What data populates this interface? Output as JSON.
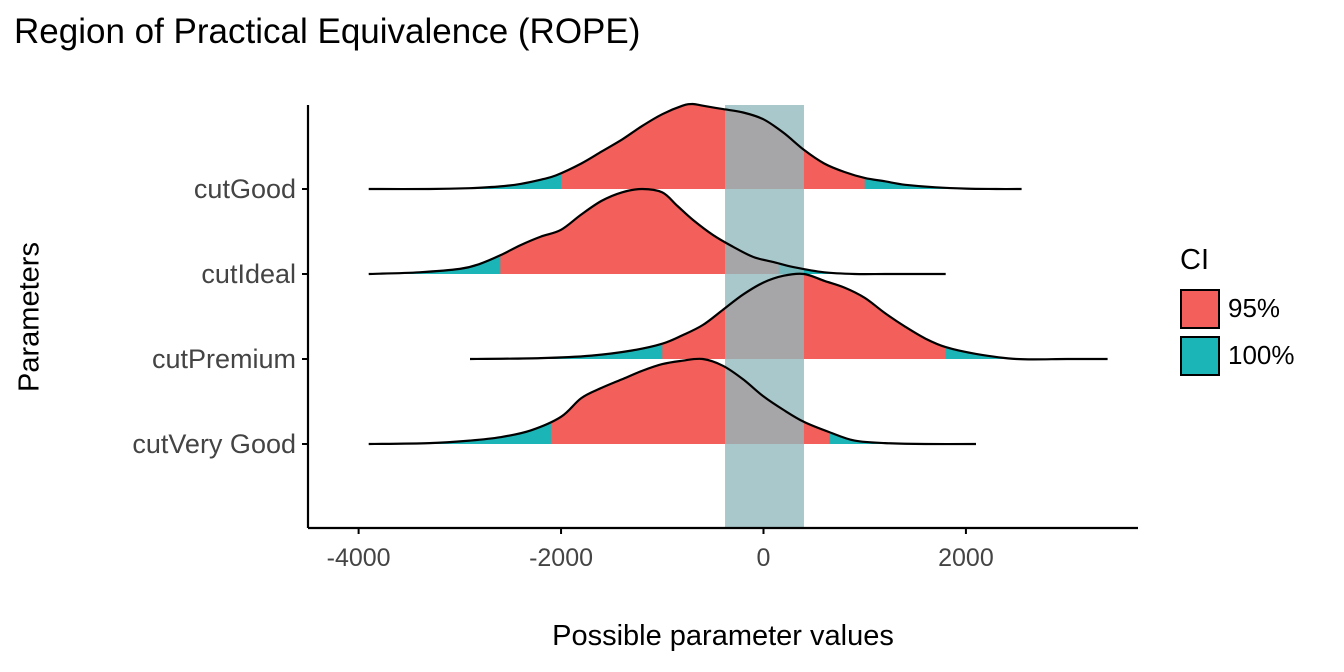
{
  "chart_data": {
    "type": "area",
    "subtype": "ridgeline-density",
    "title": "Region of Practical Equivalence (ROPE)",
    "xlabel": "Possible parameter values",
    "ylabel": "Parameters",
    "xlim": [
      -4500,
      3700
    ],
    "x_ticks": [
      -4000,
      -2000,
      0,
      2000
    ],
    "x_tick_labels": [
      "-4000",
      "-2000",
      "0",
      "2000"
    ],
    "grid": false,
    "rope": {
      "low": -380,
      "high": 400,
      "color": "#8fb8bc"
    },
    "legend": {
      "title": "CI",
      "position": "right",
      "entries": [
        {
          "label": "95%",
          "color": "#f35f5a"
        },
        {
          "label": "100%",
          "color": "#1bb5b8"
        }
      ]
    },
    "series": [
      {
        "name": "cutGood",
        "ci95": [
          -2000,
          1000
        ],
        "range": [
          -3900,
          2550
        ],
        "density_x": [
          -3900,
          -3300,
          -2900,
          -2600,
          -2400,
          -2200,
          -2050,
          -1800,
          -1600,
          -1400,
          -1200,
          -1000,
          -800,
          -700,
          -600,
          -400,
          -200,
          0,
          200,
          400,
          600,
          800,
          1000,
          1200,
          1400,
          1700,
          2000,
          2300,
          2550
        ],
        "density_y": [
          0.0,
          0.0,
          0.01,
          0.03,
          0.06,
          0.11,
          0.16,
          0.3,
          0.44,
          0.58,
          0.74,
          0.88,
          0.98,
          1.0,
          0.98,
          0.94,
          0.9,
          0.82,
          0.66,
          0.46,
          0.3,
          0.2,
          0.13,
          0.09,
          0.05,
          0.02,
          0.005,
          0.0,
          0.0
        ]
      },
      {
        "name": "cutIdeal",
        "ci95": [
          -2600,
          150
        ],
        "range": [
          -3900,
          1800
        ],
        "density_x": [
          -3900,
          -3400,
          -3000,
          -2800,
          -2600,
          -2400,
          -2200,
          -2000,
          -1800,
          -1600,
          -1400,
          -1200,
          -1000,
          -850,
          -700,
          -500,
          -300,
          -100,
          100,
          300,
          600,
          900,
          1200,
          1500,
          1800
        ],
        "density_y": [
          0.0,
          0.02,
          0.06,
          0.12,
          0.22,
          0.34,
          0.44,
          0.52,
          0.7,
          0.86,
          0.96,
          1.0,
          0.96,
          0.8,
          0.64,
          0.46,
          0.32,
          0.2,
          0.14,
          0.08,
          0.02,
          0.0,
          0.0,
          0.0,
          0.0
        ]
      },
      {
        "name": "cutPremium",
        "ci95": [
          -1000,
          1800
        ],
        "range": [
          -2900,
          3400
        ],
        "density_x": [
          -2900,
          -2200,
          -1700,
          -1300,
          -1000,
          -800,
          -600,
          -400,
          -200,
          0,
          200,
          400,
          600,
          800,
          1000,
          1200,
          1400,
          1600,
          1800,
          2100,
          2500,
          3000,
          3400
        ],
        "density_y": [
          0.0,
          0.01,
          0.04,
          0.1,
          0.18,
          0.28,
          0.4,
          0.58,
          0.76,
          0.9,
          0.98,
          1.0,
          0.92,
          0.84,
          0.72,
          0.54,
          0.38,
          0.24,
          0.14,
          0.06,
          0.0,
          0.0,
          0.0
        ]
      },
      {
        "name": "cutVery Good",
        "ci95": [
          -2100,
          650
        ],
        "range": [
          -3900,
          2100
        ],
        "density_x": [
          -3900,
          -3300,
          -2900,
          -2600,
          -2300,
          -2000,
          -1800,
          -1600,
          -1400,
          -1200,
          -1000,
          -800,
          -600,
          -400,
          -200,
          0,
          200,
          400,
          650,
          900,
          1200,
          1600,
          2100
        ],
        "density_y": [
          0.0,
          0.01,
          0.04,
          0.08,
          0.16,
          0.32,
          0.54,
          0.66,
          0.76,
          0.86,
          0.94,
          0.98,
          1.0,
          0.92,
          0.76,
          0.56,
          0.4,
          0.26,
          0.14,
          0.04,
          0.01,
          0.0,
          0.0
        ]
      }
    ]
  }
}
